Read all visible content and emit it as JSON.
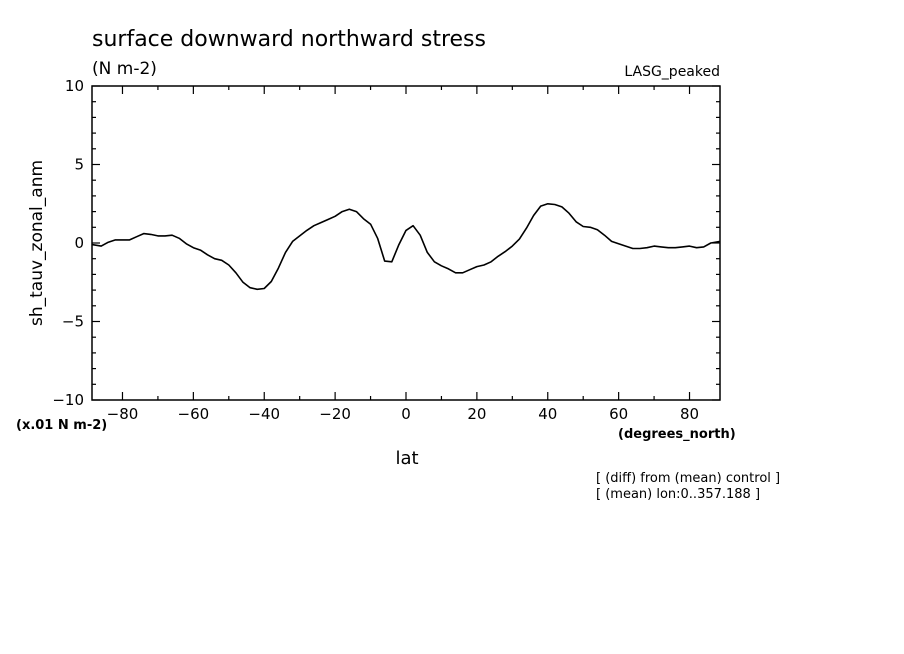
{
  "chart_data": {
    "type": "line",
    "title": "surface downward northward stress",
    "subtitle": "(N m-2)",
    "tag": "LASG_peaked",
    "xlabel": "lat",
    "xunits": "(degrees_north)",
    "ylabel": "sh_tauv_zonal_anm",
    "yscale_note": "(x.01 N m-2)",
    "xlim": [
      -88.6,
      88.6
    ],
    "ylim": [
      -10,
      10
    ],
    "xticks": [
      -80,
      -60,
      -40,
      -20,
      0,
      20,
      40,
      60,
      80
    ],
    "yticks": [
      -10,
      -5,
      0,
      5,
      10
    ],
    "grid": false,
    "line_color": "#000000",
    "series": [
      {
        "x": [
          -88.6,
          -86,
          -84,
          -82,
          -80,
          -78,
          -76,
          -74,
          -72,
          -70,
          -68,
          -66,
          -64,
          -62,
          -60,
          -58,
          -56,
          -54,
          -52,
          -50,
          -48,
          -46,
          -44,
          -42,
          -40,
          -38,
          -36,
          -34,
          -32,
          -30,
          -28,
          -26,
          -24,
          -22,
          -20,
          -18,
          -16,
          -14,
          -12,
          -10,
          -8,
          -6,
          -4,
          -2,
          0,
          2,
          4,
          6,
          8,
          10,
          12,
          14,
          16,
          18,
          20,
          22,
          24,
          26,
          28,
          30,
          32,
          34,
          36,
          38,
          40,
          42,
          44,
          46,
          48,
          50,
          52,
          54,
          56,
          58,
          60,
          62,
          64,
          66,
          68,
          70,
          72,
          74,
          76,
          78,
          80,
          82,
          84,
          86,
          88.6
        ],
        "y": [
          -0.1,
          -0.2,
          0.05,
          0.2,
          0.2,
          0.2,
          0.4,
          0.6,
          0.55,
          0.45,
          0.45,
          0.5,
          0.3,
          -0.05,
          -0.3,
          -0.45,
          -0.75,
          -1.0,
          -1.1,
          -1.4,
          -1.9,
          -2.5,
          -2.85,
          -2.95,
          -2.9,
          -2.45,
          -1.6,
          -0.6,
          0.1,
          0.45,
          0.8,
          1.1,
          1.3,
          1.5,
          1.7,
          2.0,
          2.15,
          2.0,
          1.55,
          1.2,
          0.3,
          -1.15,
          -1.2,
          -0.1,
          0.8,
          1.1,
          0.5,
          -0.6,
          -1.2,
          -1.45,
          -1.65,
          -1.9,
          -1.9,
          -1.7,
          -1.5,
          -1.4,
          -1.2,
          -0.85,
          -0.55,
          -0.2,
          0.25,
          0.95,
          1.75,
          2.35,
          2.5,
          2.45,
          2.3,
          1.9,
          1.35,
          1.05,
          1.0,
          0.85,
          0.5,
          0.1,
          -0.05,
          -0.2,
          -0.35,
          -0.35,
          -0.3,
          -0.2,
          -0.25,
          -0.3,
          -0.3,
          -0.25,
          -0.2,
          -0.3,
          -0.25,
          0.0,
          0.1
        ]
      }
    ]
  },
  "footnotes": {
    "line1": "[ (diff) from (mean) control ]",
    "line2": "[ (mean) lon:0..357.188 ]"
  }
}
